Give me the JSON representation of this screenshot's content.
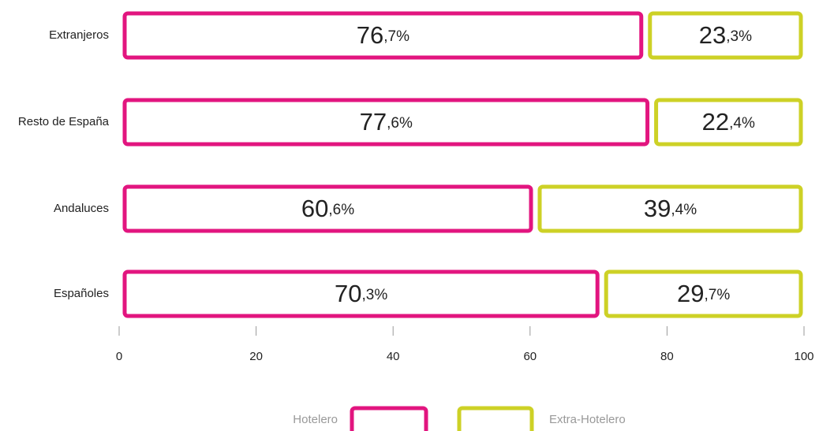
{
  "chart_data": {
    "type": "stacked-bar-horizontal",
    "categories": [
      "Extranjeros",
      "Resto de España",
      "Andaluces",
      "Españoles"
    ],
    "series": [
      {
        "name": "Hotelero",
        "color": "#e2157f",
        "values": [
          76.7,
          77.6,
          60.6,
          70.3
        ],
        "value_labels": [
          "76,7%",
          "77,6%",
          "60,6%",
          "70,3%"
        ]
      },
      {
        "name": "Extra-Hotelero",
        "color": "#cdd126",
        "values": [
          23.3,
          22.4,
          39.4,
          29.7
        ],
        "value_labels": [
          "23,3%",
          "22,4%",
          "39,4%",
          "29,7%"
        ]
      }
    ],
    "xlim": [
      0,
      100
    ],
    "xticks": [
      0,
      20,
      40,
      60,
      80,
      100
    ],
    "legend": "bottom"
  }
}
